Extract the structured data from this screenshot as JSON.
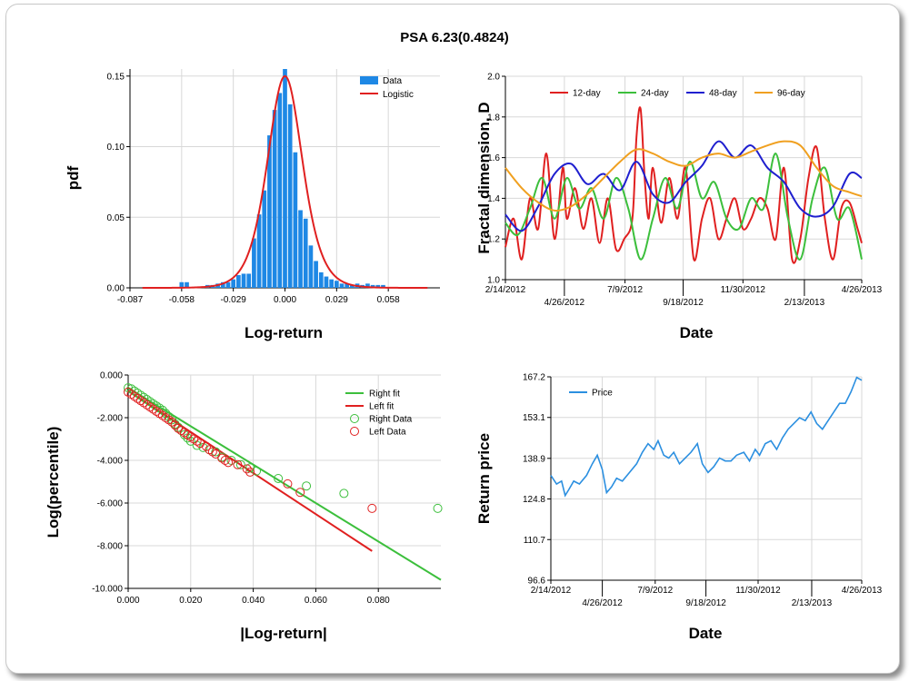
{
  "title": "PSA 6.23(0.4824)",
  "chart_data": [
    {
      "id": "pdf",
      "type": "bar",
      "xlabel": "Log-return",
      "ylabel": "pdf",
      "xlim": [
        -0.087,
        0.087
      ],
      "ylim": [
        0,
        0.155
      ],
      "x_ticks": [
        "-0.087",
        "-0.058",
        "-0.029",
        "0.000",
        "0.029",
        "0.058"
      ],
      "x_tick_values": [
        -0.087,
        -0.058,
        -0.029,
        0.0,
        0.029,
        0.058
      ],
      "y_ticks": [
        "0.00",
        "0.05",
        "0.10",
        "0.15"
      ],
      "y_tick_values": [
        0.0,
        0.05,
        0.1,
        0.15
      ],
      "grid": true,
      "legend_position": "top-right",
      "series": [
        {
          "name": "Data",
          "kind": "bar",
          "color": "#1e88e5",
          "bin_width": 0.0029,
          "x": [
            -0.058,
            -0.0551,
            -0.0435,
            -0.0406,
            -0.0377,
            -0.0348,
            -0.0319,
            -0.029,
            -0.0261,
            -0.0232,
            -0.0203,
            -0.0174,
            -0.0145,
            -0.0116,
            -0.0087,
            -0.0058,
            -0.0029,
            0.0,
            0.0029,
            0.0058,
            0.0087,
            0.0116,
            0.0145,
            0.0174,
            0.0203,
            0.0232,
            0.0261,
            0.029,
            0.0319,
            0.0348,
            0.0377,
            0.0406,
            0.0435,
            0.0464,
            0.0493,
            0.0522,
            0.0551
          ],
          "values": [
            0.004,
            0.004,
            0.002,
            0.002,
            0.003,
            0.004,
            0.004,
            0.006,
            0.009,
            0.01,
            0.01,
            0.035,
            0.052,
            0.069,
            0.108,
            0.126,
            0.138,
            0.155,
            0.13,
            0.096,
            0.055,
            0.049,
            0.03,
            0.019,
            0.011,
            0.008,
            0.006,
            0.005,
            0.003,
            0.003,
            0.002,
            0.003,
            0.002,
            0.003,
            0.002,
            0.002,
            0.002
          ]
        },
        {
          "name": "Logistic",
          "kind": "line",
          "color": "#e02020",
          "location": 0.0,
          "scale": 0.0066,
          "peak": 0.15
        }
      ]
    },
    {
      "id": "fractal",
      "type": "line",
      "xlabel": "Date",
      "ylabel": "Fractal dimension, D",
      "xlim": [
        0,
        435
      ],
      "ylim": [
        1.0,
        2.0
      ],
      "x_ticks_top": [
        "2/14/2012",
        "7/9/2012",
        "11/30/2012",
        "4/26/2013"
      ],
      "x_ticks_top_values": [
        0,
        146,
        290,
        435
      ],
      "x_ticks_bottom": [
        "4/26/2012",
        "9/18/2012",
        "2/13/2013"
      ],
      "x_ticks_bottom_values": [
        72,
        217,
        365
      ],
      "y_ticks": [
        "1.0",
        "1.2",
        "1.4",
        "1.6",
        "1.8",
        "2.0"
      ],
      "y_tick_values": [
        1.0,
        1.2,
        1.4,
        1.6,
        1.8,
        2.0
      ],
      "grid": true,
      "legend_position": "top",
      "series": [
        {
          "name": "12-day",
          "color": "#e02020",
          "x": [
            0,
            10,
            20,
            30,
            40,
            50,
            60,
            70,
            75,
            85,
            95,
            105,
            115,
            125,
            135,
            145,
            155,
            160,
            165,
            170,
            175,
            180,
            190,
            200,
            210,
            220,
            230,
            240,
            250,
            260,
            270,
            280,
            290,
            300,
            310,
            320,
            330,
            340,
            350,
            360,
            370,
            380,
            390,
            400,
            410,
            420,
            430,
            435
          ],
          "values": [
            1.16,
            1.3,
            1.1,
            1.4,
            1.25,
            1.62,
            1.2,
            1.55,
            1.3,
            1.45,
            1.25,
            1.4,
            1.18,
            1.4,
            1.15,
            1.2,
            1.3,
            1.7,
            1.84,
            1.5,
            1.3,
            1.55,
            1.28,
            1.5,
            1.3,
            1.55,
            1.1,
            1.3,
            1.4,
            1.2,
            1.3,
            1.4,
            1.25,
            1.3,
            1.4,
            1.35,
            1.2,
            1.55,
            1.1,
            1.2,
            1.5,
            1.65,
            1.3,
            1.1,
            1.35,
            1.38,
            1.25,
            1.18
          ]
        },
        {
          "name": "24-day",
          "color": "#3cbf3c",
          "x": [
            0,
            15,
            30,
            45,
            60,
            75,
            90,
            105,
            120,
            135,
            150,
            165,
            180,
            195,
            210,
            225,
            240,
            255,
            270,
            285,
            300,
            315,
            330,
            345,
            360,
            375,
            390,
            405,
            420,
            435
          ],
          "values": [
            1.28,
            1.22,
            1.35,
            1.5,
            1.3,
            1.5,
            1.35,
            1.45,
            1.3,
            1.5,
            1.35,
            1.1,
            1.3,
            1.5,
            1.35,
            1.58,
            1.4,
            1.48,
            1.3,
            1.25,
            1.4,
            1.35,
            1.62,
            1.3,
            1.1,
            1.4,
            1.55,
            1.3,
            1.35,
            1.1
          ]
        },
        {
          "name": "48-day",
          "color": "#1f1fcf",
          "x": [
            0,
            20,
            40,
            60,
            80,
            100,
            120,
            140,
            160,
            180,
            200,
            220,
            240,
            260,
            280,
            300,
            320,
            340,
            360,
            380,
            400,
            420,
            435
          ],
          "values": [
            1.32,
            1.24,
            1.36,
            1.52,
            1.57,
            1.47,
            1.52,
            1.44,
            1.58,
            1.42,
            1.38,
            1.48,
            1.56,
            1.68,
            1.6,
            1.66,
            1.55,
            1.48,
            1.35,
            1.31,
            1.36,
            1.52,
            1.5
          ]
        },
        {
          "name": "96-day",
          "color": "#f0a020",
          "x": [
            0,
            20,
            40,
            60,
            80,
            100,
            120,
            140,
            160,
            180,
            200,
            220,
            240,
            260,
            280,
            300,
            320,
            340,
            360,
            380,
            400,
            420,
            435
          ],
          "values": [
            1.55,
            1.45,
            1.38,
            1.34,
            1.36,
            1.42,
            1.5,
            1.58,
            1.64,
            1.62,
            1.58,
            1.56,
            1.6,
            1.62,
            1.6,
            1.63,
            1.66,
            1.68,
            1.66,
            1.55,
            1.46,
            1.43,
            1.41
          ]
        }
      ]
    },
    {
      "id": "tail",
      "type": "scatter",
      "xlabel": "|Log-return|",
      "ylabel": "Log(percentile)",
      "xlim": [
        0,
        0.1
      ],
      "ylim": [
        -10,
        0
      ],
      "x_ticks": [
        "0.000",
        "0.020",
        "0.040",
        "0.060",
        "0.080"
      ],
      "x_tick_values": [
        0.0,
        0.02,
        0.04,
        0.06,
        0.08
      ],
      "y_ticks": [
        "0.000",
        "-2.000",
        "-4.000",
        "-6.000",
        "-8.000",
        "-10.000"
      ],
      "y_tick_values": [
        0,
        -2,
        -4,
        -6,
        -8,
        -10
      ],
      "grid": true,
      "legend_position": "top-right",
      "series": [
        {
          "name": "Right fit",
          "kind": "line",
          "color": "#3cbf3c",
          "x": [
            0.0,
            0.1
          ],
          "values": [
            -0.6,
            -9.6
          ]
        },
        {
          "name": "Left fit",
          "kind": "line",
          "color": "#e02020",
          "x": [
            0.0,
            0.078
          ],
          "values": [
            -0.75,
            -8.25
          ]
        },
        {
          "name": "Right Data",
          "kind": "points",
          "color": "#3cbf3c",
          "x": [
            0.0,
            0.001,
            0.002,
            0.003,
            0.004,
            0.005,
            0.006,
            0.007,
            0.008,
            0.009,
            0.01,
            0.011,
            0.012,
            0.013,
            0.014,
            0.015,
            0.016,
            0.017,
            0.018,
            0.019,
            0.02,
            0.022,
            0.024,
            0.026,
            0.028,
            0.03,
            0.033,
            0.036,
            0.039,
            0.041,
            0.048,
            0.057,
            0.069,
            0.099
          ],
          "values": [
            -0.6,
            -0.65,
            -0.75,
            -0.85,
            -0.95,
            -1.05,
            -1.15,
            -1.25,
            -1.35,
            -1.45,
            -1.55,
            -1.65,
            -1.8,
            -1.95,
            -2.1,
            -2.3,
            -2.45,
            -2.6,
            -2.8,
            -2.95,
            -3.1,
            -3.3,
            -3.4,
            -3.5,
            -3.6,
            -3.85,
            -4.0,
            -4.2,
            -4.35,
            -4.5,
            -4.85,
            -5.2,
            -5.55,
            -6.25
          ]
        },
        {
          "name": "Left Data",
          "kind": "points",
          "color": "#e02020",
          "x": [
            0.0,
            0.001,
            0.002,
            0.003,
            0.004,
            0.005,
            0.006,
            0.007,
            0.008,
            0.009,
            0.01,
            0.011,
            0.012,
            0.013,
            0.014,
            0.015,
            0.016,
            0.017,
            0.018,
            0.019,
            0.02,
            0.021,
            0.022,
            0.023,
            0.025,
            0.026,
            0.027,
            0.028,
            0.03,
            0.031,
            0.032,
            0.035,
            0.038,
            0.039,
            0.051,
            0.055,
            0.078
          ],
          "values": [
            -0.8,
            -0.9,
            -1.0,
            -1.1,
            -1.2,
            -1.3,
            -1.4,
            -1.5,
            -1.6,
            -1.7,
            -1.8,
            -1.9,
            -2.0,
            -2.1,
            -2.2,
            -2.35,
            -2.5,
            -2.6,
            -2.7,
            -2.8,
            -2.9,
            -3.0,
            -3.1,
            -3.2,
            -3.35,
            -3.5,
            -3.6,
            -3.7,
            -3.9,
            -4.0,
            -4.1,
            -4.2,
            -4.4,
            -4.55,
            -5.1,
            -5.5,
            -6.25
          ]
        }
      ]
    },
    {
      "id": "price",
      "type": "line",
      "xlabel": "Date",
      "ylabel": "Return price",
      "xlim": [
        0,
        435
      ],
      "ylim": [
        96.6,
        167.2
      ],
      "x_ticks_top": [
        "2/14/2012",
        "7/9/2012",
        "11/30/2012",
        "4/26/2013"
      ],
      "x_ticks_top_values": [
        0,
        146,
        290,
        435
      ],
      "x_ticks_bottom": [
        "4/26/2012",
        "9/18/2012",
        "2/13/2013"
      ],
      "x_ticks_bottom_values": [
        72,
        217,
        365
      ],
      "y_ticks": [
        "96.6",
        "110.7",
        "124.8",
        "138.9",
        "153.1",
        "167.2"
      ],
      "y_tick_values": [
        96.6,
        110.7,
        124.8,
        138.9,
        153.1,
        167.2
      ],
      "grid": true,
      "legend_position": "top-left",
      "series": [
        {
          "name": "Price",
          "color": "#2b8fe0",
          "x": [
            0,
            8,
            15,
            20,
            25,
            32,
            40,
            50,
            58,
            65,
            72,
            78,
            85,
            92,
            100,
            110,
            120,
            128,
            136,
            144,
            150,
            158,
            165,
            172,
            180,
            188,
            196,
            205,
            212,
            220,
            228,
            236,
            244,
            252,
            260,
            270,
            278,
            286,
            292,
            300,
            308,
            316,
            324,
            332,
            340,
            348,
            356,
            364,
            372,
            380,
            388,
            396,
            404,
            412,
            420,
            428,
            435
          ],
          "values": [
            133,
            130,
            131,
            126,
            128,
            131,
            130,
            133,
            137,
            140,
            135,
            127,
            129,
            132,
            131,
            134,
            137,
            141,
            144,
            142,
            145,
            140,
            139,
            141,
            137,
            139,
            141,
            144,
            137,
            134,
            136,
            139,
            138,
            138,
            140,
            141,
            138,
            142,
            140,
            144,
            145,
            142,
            146,
            149,
            151,
            153,
            152,
            155,
            151,
            149,
            152,
            155,
            158,
            158,
            162,
            167,
            166
          ]
        }
      ]
    }
  ]
}
